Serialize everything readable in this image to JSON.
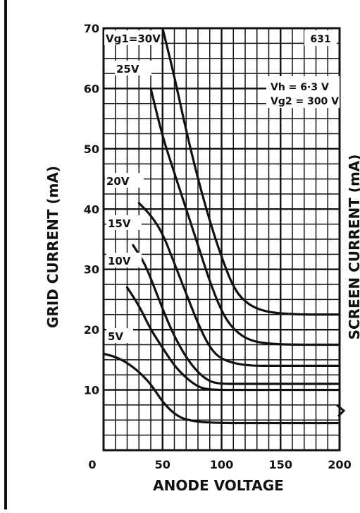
{
  "chart_data": {
    "type": "line",
    "chart_id": "631",
    "xlabel": "ANODE VOLTAGE",
    "ylabel": "GRID CURRENT (mA)",
    "right_axis_label": "SCREEN CURRENT (mA)",
    "x_ticks": [
      "0",
      "50",
      "100",
      "150",
      "200"
    ],
    "y_ticks": [
      "10",
      "20",
      "30",
      "40",
      "50",
      "60",
      "70"
    ],
    "xlim": [
      0,
      200
    ],
    "ylim": [
      0,
      70
    ],
    "grid": true,
    "conditions": [
      "Vh = 6·3 V",
      "Vg2 = 300 V"
    ],
    "series": [
      {
        "name": "Vg1=30V",
        "points": [
          [
            50,
            70
          ],
          [
            60,
            62
          ],
          [
            70,
            53
          ],
          [
            80,
            45
          ],
          [
            90,
            38
          ],
          [
            100,
            32
          ],
          [
            110,
            27
          ],
          [
            120,
            24.5
          ],
          [
            135,
            23
          ],
          [
            160,
            22.5
          ],
          [
            200,
            22.5
          ]
        ]
      },
      {
        "name": "25V",
        "points": [
          [
            40,
            60
          ],
          [
            50,
            52
          ],
          [
            60,
            46
          ],
          [
            70,
            40
          ],
          [
            80,
            34
          ],
          [
            90,
            28
          ],
          [
            100,
            23
          ],
          [
            110,
            20
          ],
          [
            125,
            18
          ],
          [
            150,
            17.5
          ],
          [
            200,
            17.5
          ]
        ]
      },
      {
        "name": "20V",
        "points": [
          [
            30,
            41
          ],
          [
            40,
            39
          ],
          [
            50,
            36
          ],
          [
            60,
            31
          ],
          [
            70,
            26
          ],
          [
            80,
            21
          ],
          [
            90,
            17
          ],
          [
            100,
            15
          ],
          [
            120,
            14
          ],
          [
            150,
            14
          ],
          [
            200,
            14
          ]
        ]
      },
      {
        "name": "15V",
        "points": [
          [
            25,
            34
          ],
          [
            35,
            31
          ],
          [
            45,
            26
          ],
          [
            55,
            21
          ],
          [
            65,
            17
          ],
          [
            75,
            14
          ],
          [
            85,
            12
          ],
          [
            95,
            11
          ],
          [
            120,
            11
          ],
          [
            200,
            11
          ]
        ]
      },
      {
        "name": "10V",
        "points": [
          [
            20,
            27
          ],
          [
            30,
            24
          ],
          [
            40,
            20
          ],
          [
            50,
            17
          ],
          [
            60,
            14
          ],
          [
            70,
            12
          ],
          [
            80,
            10.5
          ],
          [
            90,
            10
          ],
          [
            120,
            10
          ],
          [
            200,
            10
          ]
        ]
      },
      {
        "name": "5V",
        "points": [
          [
            0,
            16
          ],
          [
            10,
            15.5
          ],
          [
            20,
            14.5
          ],
          [
            30,
            13
          ],
          [
            40,
            11
          ],
          [
            50,
            8
          ],
          [
            60,
            6
          ],
          [
            70,
            5
          ],
          [
            90,
            4.5
          ],
          [
            150,
            4.5
          ],
          [
            200,
            4.5
          ]
        ]
      }
    ]
  }
}
